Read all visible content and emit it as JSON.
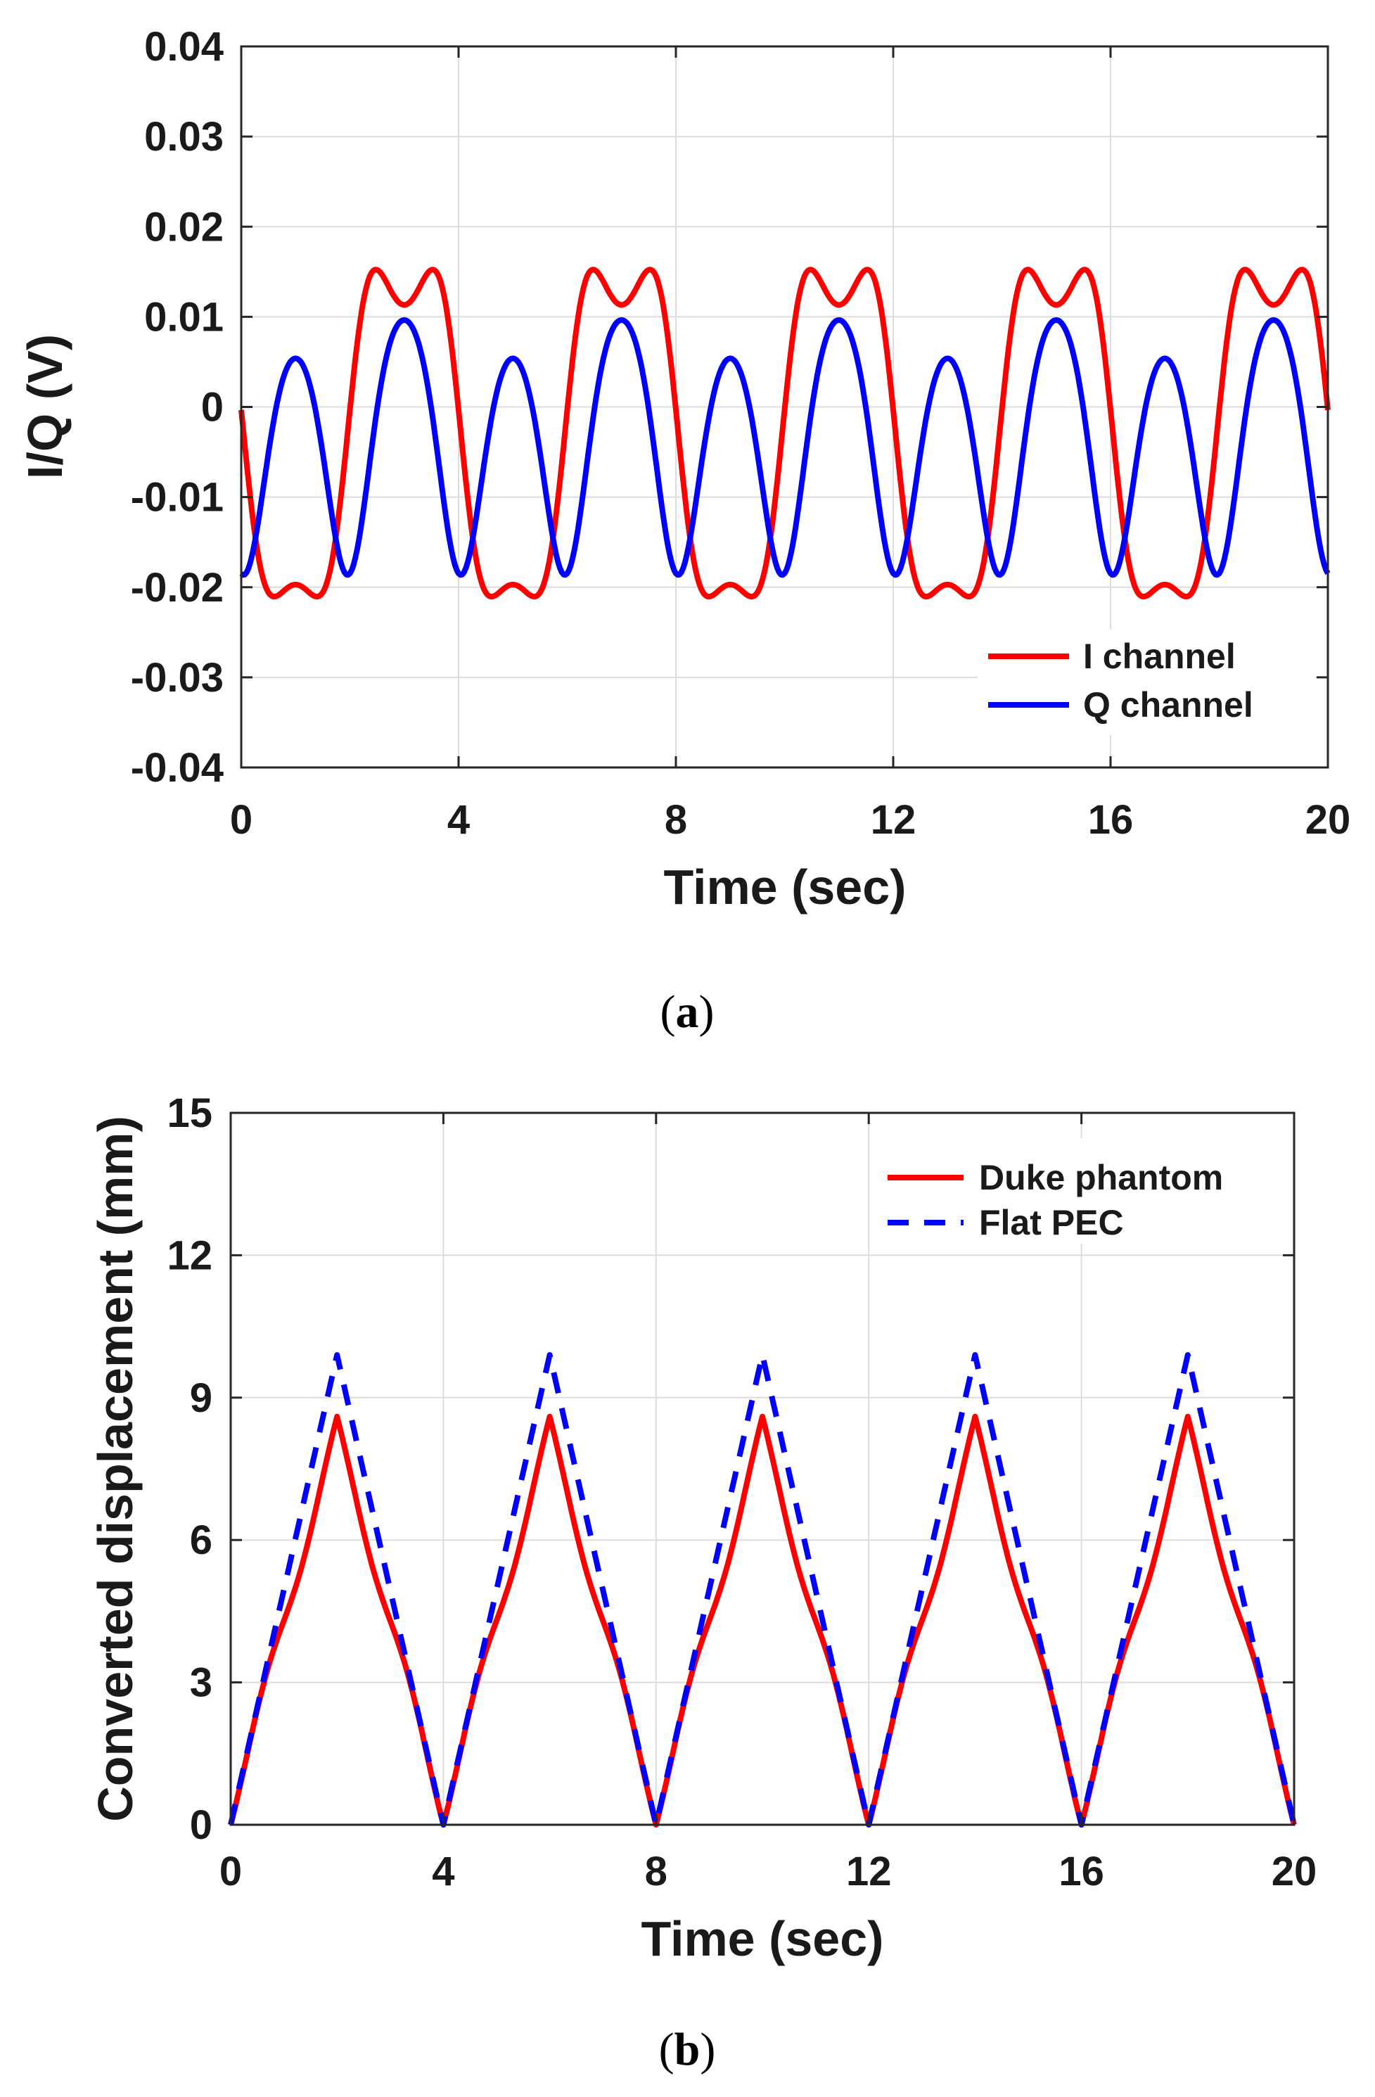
{
  "chart_data": [
    {
      "type": "line",
      "panel": "a",
      "caption": [
        "(",
        "a",
        ")"
      ],
      "xlabel": "Time (sec)",
      "ylabel": "I/Q (V)",
      "xlim": [
        0,
        20
      ],
      "ylim": [
        -0.04,
        0.04
      ],
      "xticks": [
        0,
        4,
        8,
        12,
        16,
        20
      ],
      "xtick_labels": [
        "0",
        "4",
        "8",
        "12",
        "16",
        "20"
      ],
      "yticks": [
        -0.04,
        -0.03,
        -0.02,
        -0.01,
        0,
        0.01,
        0.02,
        0.03,
        0.04
      ],
      "ytick_labels": [
        "-0.04",
        "-0.03",
        "-0.02",
        "-0.01",
        "0",
        "0.01",
        "0.02",
        "0.03",
        "0.04"
      ],
      "grid": true,
      "legend_position": "bottom-right",
      "series": [
        {
          "name": "I channel",
          "color": "#ff0000",
          "style": "solid",
          "model": "sin_fm",
          "center": -0.0029,
          "amplitude": 0.01815,
          "phase": 3.0,
          "mod_index": 2.1,
          "period": 4,
          "samples": 600
        },
        {
          "name": "Q channel",
          "color": "#0000ff",
          "style": "solid",
          "model": "cos_fm",
          "center": -0.0012,
          "amplitude": 0.01745,
          "phase": 3.0,
          "mod_index": 2.1,
          "period": 4,
          "samples": 600
        }
      ]
    },
    {
      "type": "line",
      "panel": "b",
      "caption": [
        "(",
        "b",
        ")"
      ],
      "xlabel": "Time (sec)",
      "ylabel": "Converted displacement (mm)",
      "xlim": [
        0,
        20
      ],
      "ylim": [
        0,
        15
      ],
      "xticks": [
        0,
        4,
        8,
        12,
        16,
        20
      ],
      "xtick_labels": [
        "0",
        "4",
        "8",
        "12",
        "16",
        "20"
      ],
      "yticks": [
        0,
        3,
        6,
        9,
        12,
        15
      ],
      "ytick_labels": [
        "0",
        "3",
        "6",
        "9",
        "12",
        "15"
      ],
      "grid": true,
      "legend_position": "top-right",
      "series": [
        {
          "name": "Duke phantom",
          "color": "#ff0000",
          "style": "solid",
          "model": "triangle_wobble",
          "peak": 8.6,
          "period": 4,
          "wobble": 0.4,
          "samples": 800
        },
        {
          "name": "Flat PEC",
          "color": "#0000ff",
          "style": "dashed",
          "model": "triangle",
          "peak": 9.9,
          "period": 4,
          "samples": 200
        }
      ]
    }
  ]
}
